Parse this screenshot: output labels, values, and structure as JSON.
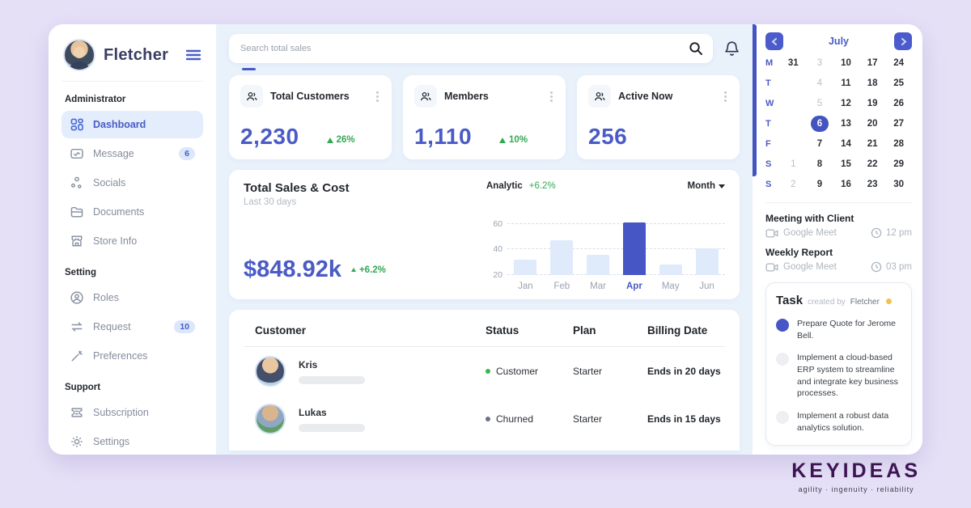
{
  "user": {
    "name": "Fletcher"
  },
  "sidebar": {
    "sections": [
      {
        "label": "Administrator",
        "items": [
          {
            "label": "Dashboard",
            "icon": "grid-icon",
            "active": true
          },
          {
            "label": "Message",
            "icon": "mail-icon",
            "badge": "6"
          },
          {
            "label": "Socials",
            "icon": "share-icon"
          },
          {
            "label": "Documents",
            "icon": "folder-icon"
          },
          {
            "label": "Store Info",
            "icon": "store-icon"
          }
        ]
      },
      {
        "label": "Setting",
        "items": [
          {
            "label": "Roles",
            "icon": "user-circle-icon"
          },
          {
            "label": "Request",
            "icon": "swap-arrows-icon",
            "badge": "10"
          },
          {
            "label": "Preferences",
            "icon": "wand-icon"
          }
        ]
      },
      {
        "label": "Support",
        "items": [
          {
            "label": "Subscription",
            "icon": "ticket-icon"
          },
          {
            "label": "Settings",
            "icon": "gear-icon"
          }
        ]
      }
    ]
  },
  "search": {
    "placeholder": "Search total sales"
  },
  "stats": [
    {
      "label": "Total Customers",
      "value": "2,230",
      "delta": "26%"
    },
    {
      "label": "Members",
      "value": "1,110",
      "delta": "10%"
    },
    {
      "label": "Active Now",
      "value": "256",
      "delta": ""
    }
  ],
  "sales": {
    "title": "Total Sales & Cost",
    "subtitle": "Last 30 days",
    "value": "$848.92k",
    "delta": "+6.2%",
    "analytic_label": "Analytic",
    "analytic_delta": "+6.2%",
    "period": "Month"
  },
  "chart_data": {
    "type": "bar",
    "categories": [
      "Jan",
      "Feb",
      "Mar",
      "Apr",
      "May",
      "Jun"
    ],
    "values": [
      32,
      47,
      36,
      61,
      28,
      41
    ],
    "highlight_category": "Apr",
    "title": "Total Sales & Cost",
    "xlabel": "",
    "ylabel": "",
    "yticks": [
      20,
      40,
      60
    ],
    "ylim": [
      20,
      63
    ],
    "grid": "dashed-horizontal",
    "bar_color": "#dfeafb",
    "highlight_color": "#4656c4"
  },
  "table": {
    "headers": [
      "Customer",
      "Status",
      "Plan",
      "Billing Date"
    ],
    "rows": [
      {
        "name": "Kris",
        "status": "Customer",
        "status_color": "#3bb54a",
        "plan": "Starter",
        "billing": "Ends in 20 days"
      },
      {
        "name": "Lukas",
        "status": "Churned",
        "status_color": "#6b7280",
        "plan": "Starter",
        "billing": "Ends in 15 days"
      }
    ]
  },
  "calendar": {
    "month": "July",
    "rows": [
      {
        "dow": "M",
        "days": [
          "31",
          "3",
          "10",
          "17",
          "24"
        ],
        "muted": [
          1
        ]
      },
      {
        "dow": "T",
        "days": [
          "",
          "4",
          "11",
          "18",
          "25"
        ],
        "muted": [
          1
        ]
      },
      {
        "dow": "W",
        "days": [
          "",
          "5",
          "12",
          "19",
          "26"
        ],
        "muted": [
          1
        ]
      },
      {
        "dow": "T",
        "days": [
          "",
          "6",
          "13",
          "20",
          "27"
        ],
        "muted": [],
        "selected": 1
      },
      {
        "dow": "F",
        "days": [
          "",
          "7",
          "14",
          "21",
          "28"
        ],
        "muted": []
      },
      {
        "dow": "S",
        "days": [
          "1",
          "8",
          "15",
          "22",
          "29"
        ],
        "muted": [
          0
        ]
      },
      {
        "dow": "S",
        "days": [
          "2",
          "9",
          "16",
          "23",
          "30"
        ],
        "muted": [
          0
        ]
      }
    ]
  },
  "meetings": [
    {
      "title": "Meeting with Client",
      "platform": "Google Meet",
      "time": "12 pm"
    },
    {
      "title": "Weekly Report",
      "platform": "Google Meet",
      "time": "03 pm"
    }
  ],
  "tasks": {
    "title": "Task",
    "created_by_label": "created by",
    "author": "Fletcher",
    "items": [
      {
        "text": "Prepare Quote for Jerome Bell.",
        "done": true
      },
      {
        "text": "Implement a cloud-based ERP system to streamline and integrate key business processes.",
        "done": false
      },
      {
        "text": "Implement a robust data analytics solution.",
        "done": false
      }
    ]
  },
  "brand": {
    "name": "KEYIDEAS",
    "tagline": "agility  ·  ingenuity  ·  reliability"
  },
  "colors": {
    "accent": "#4a5bc6",
    "bar_highlight": "#4656c4",
    "green": "#34a853",
    "lavender": "#e6e0f7"
  }
}
